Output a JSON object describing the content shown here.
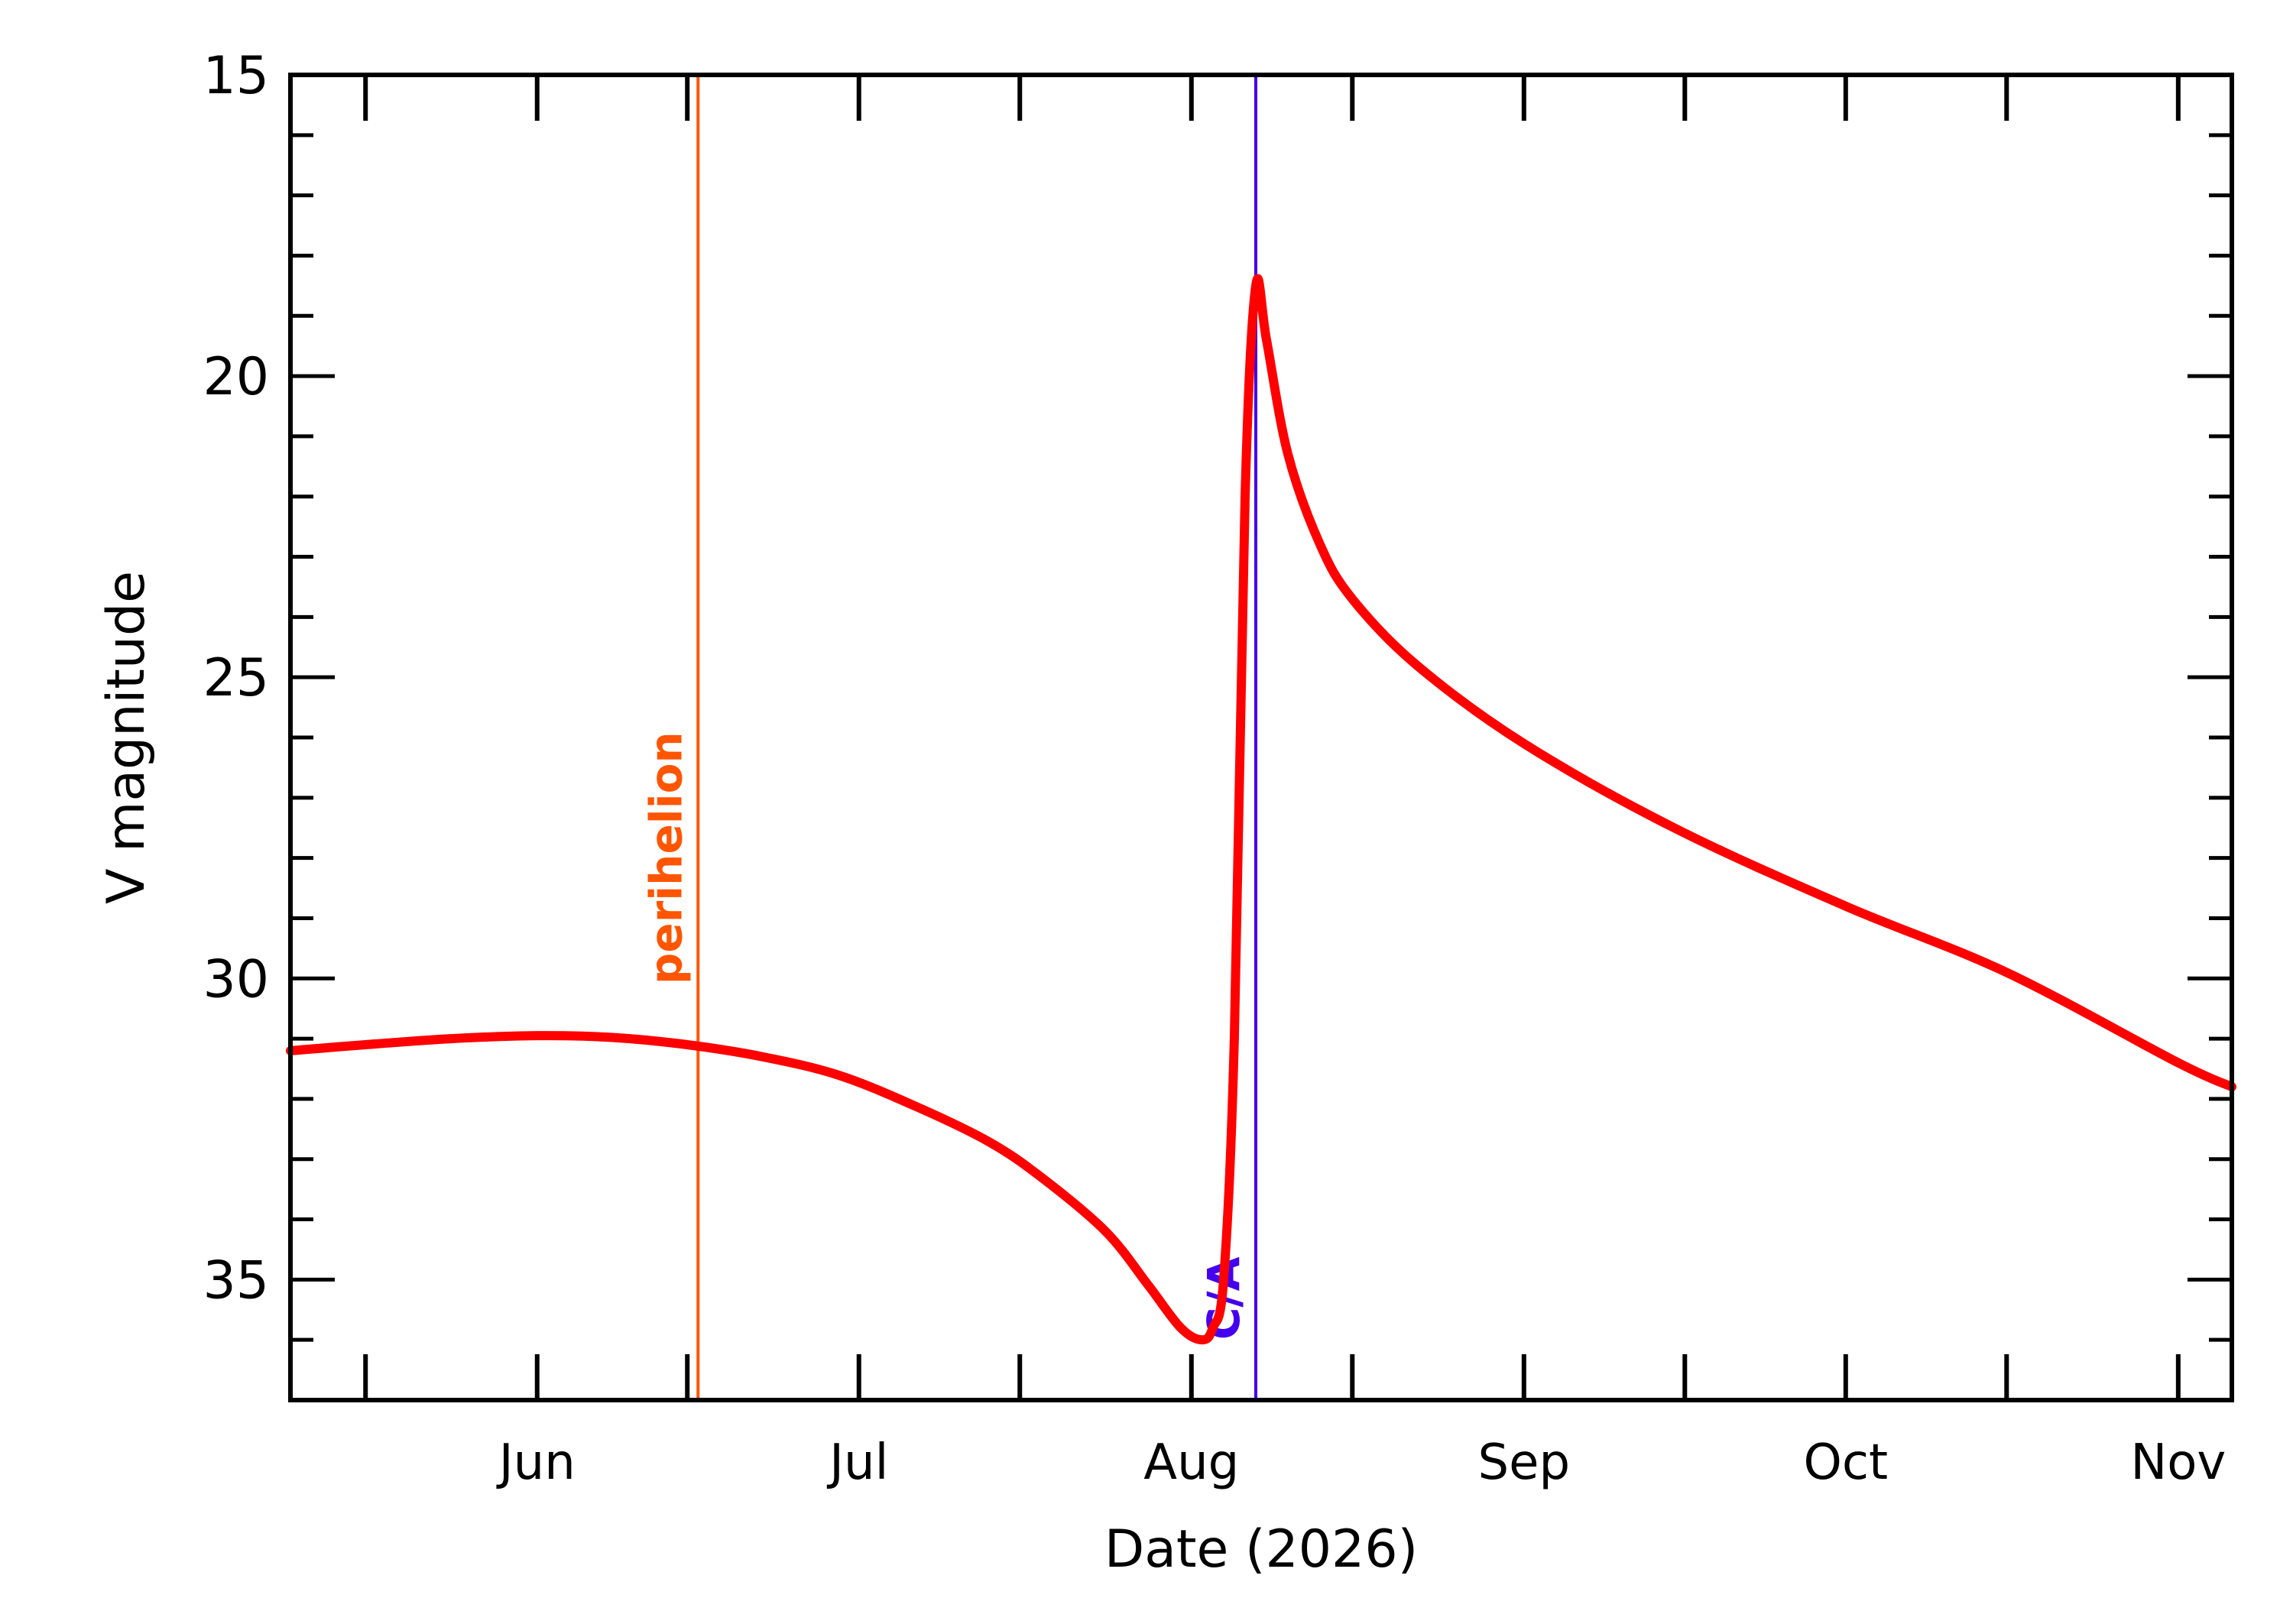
{
  "chart_data": {
    "type": "line",
    "xlabel": "Date (2026)",
    "ylabel": "V magnitude",
    "x_axis_type": "date",
    "xlim": [
      "2026-05-09",
      "2026-11-06"
    ],
    "ylim": [
      37.0,
      15.0
    ],
    "y_inverted": true,
    "x_ticks": [
      {
        "date": "2026-05-16",
        "label": ""
      },
      {
        "date": "2026-06-01",
        "label": "Jun"
      },
      {
        "date": "2026-06-15",
        "label": ""
      },
      {
        "date": "2026-07-01",
        "label": "Jul"
      },
      {
        "date": "2026-07-16",
        "label": ""
      },
      {
        "date": "2026-08-01",
        "label": "Aug"
      },
      {
        "date": "2026-08-16",
        "label": ""
      },
      {
        "date": "2026-09-01",
        "label": "Sep"
      },
      {
        "date": "2026-09-16",
        "label": ""
      },
      {
        "date": "2026-10-01",
        "label": "Oct"
      },
      {
        "date": "2026-10-16",
        "label": ""
      },
      {
        "date": "2026-11-01",
        "label": "Nov"
      }
    ],
    "y_major_ticks": [
      15,
      20,
      25,
      30,
      35
    ],
    "y_minor_step": 1,
    "series": [
      {
        "color": "#ff0000",
        "points": [
          {
            "x": "2026-05-09",
            "y": 31.2
          },
          {
            "x": "2026-05-16",
            "y": 31.1
          },
          {
            "x": "2026-05-24",
            "y": 31.0
          },
          {
            "x": "2026-06-01",
            "y": 30.95
          },
          {
            "x": "2026-06-08",
            "y": 30.98
          },
          {
            "x": "2026-06-15",
            "y": 31.1
          },
          {
            "x": "2026-06-22",
            "y": 31.3
          },
          {
            "x": "2026-06-29",
            "y": 31.6
          },
          {
            "x": "2026-07-06",
            "y": 32.1
          },
          {
            "x": "2026-07-13",
            "y": 32.7
          },
          {
            "x": "2026-07-18",
            "y": 33.3
          },
          {
            "x": "2026-07-24",
            "y": 34.2
          },
          {
            "x": "2026-07-28",
            "y": 35.1
          },
          {
            "x": "2026-07-31",
            "y": 35.8
          },
          {
            "x": "2026-08-02",
            "y": 36.0
          },
          {
            "x": "2026-08-03",
            "y": 35.8
          },
          {
            "x": "2026-08-04",
            "y": 35.0
          },
          {
            "x": "2026-08-05",
            "y": 31.0
          },
          {
            "x": "2026-08-06",
            "y": 22.0
          },
          {
            "x": "2026-08-07",
            "y": 18.5
          },
          {
            "x": "2026-08-08",
            "y": 19.4
          },
          {
            "x": "2026-08-10",
            "y": 21.3
          },
          {
            "x": "2026-08-13",
            "y": 22.8
          },
          {
            "x": "2026-08-16",
            "y": 23.7
          },
          {
            "x": "2026-08-22",
            "y": 24.8
          },
          {
            "x": "2026-09-01",
            "y": 26.1
          },
          {
            "x": "2026-09-15",
            "y": 27.5
          },
          {
            "x": "2026-10-01",
            "y": 28.8
          },
          {
            "x": "2026-10-16",
            "y": 29.9
          },
          {
            "x": "2026-11-01",
            "y": 31.4
          },
          {
            "x": "2026-11-06",
            "y": 31.8
          }
        ]
      }
    ],
    "annotations": [
      {
        "label": "perihelion",
        "date": "2026-06-16",
        "color": "#ff5500",
        "label_y": 30.1
      },
      {
        "label": "C/A",
        "date": "2026-08-07",
        "color": "#4400ee",
        "label_y": 36.0
      }
    ],
    "grid": false,
    "legend": "none"
  }
}
